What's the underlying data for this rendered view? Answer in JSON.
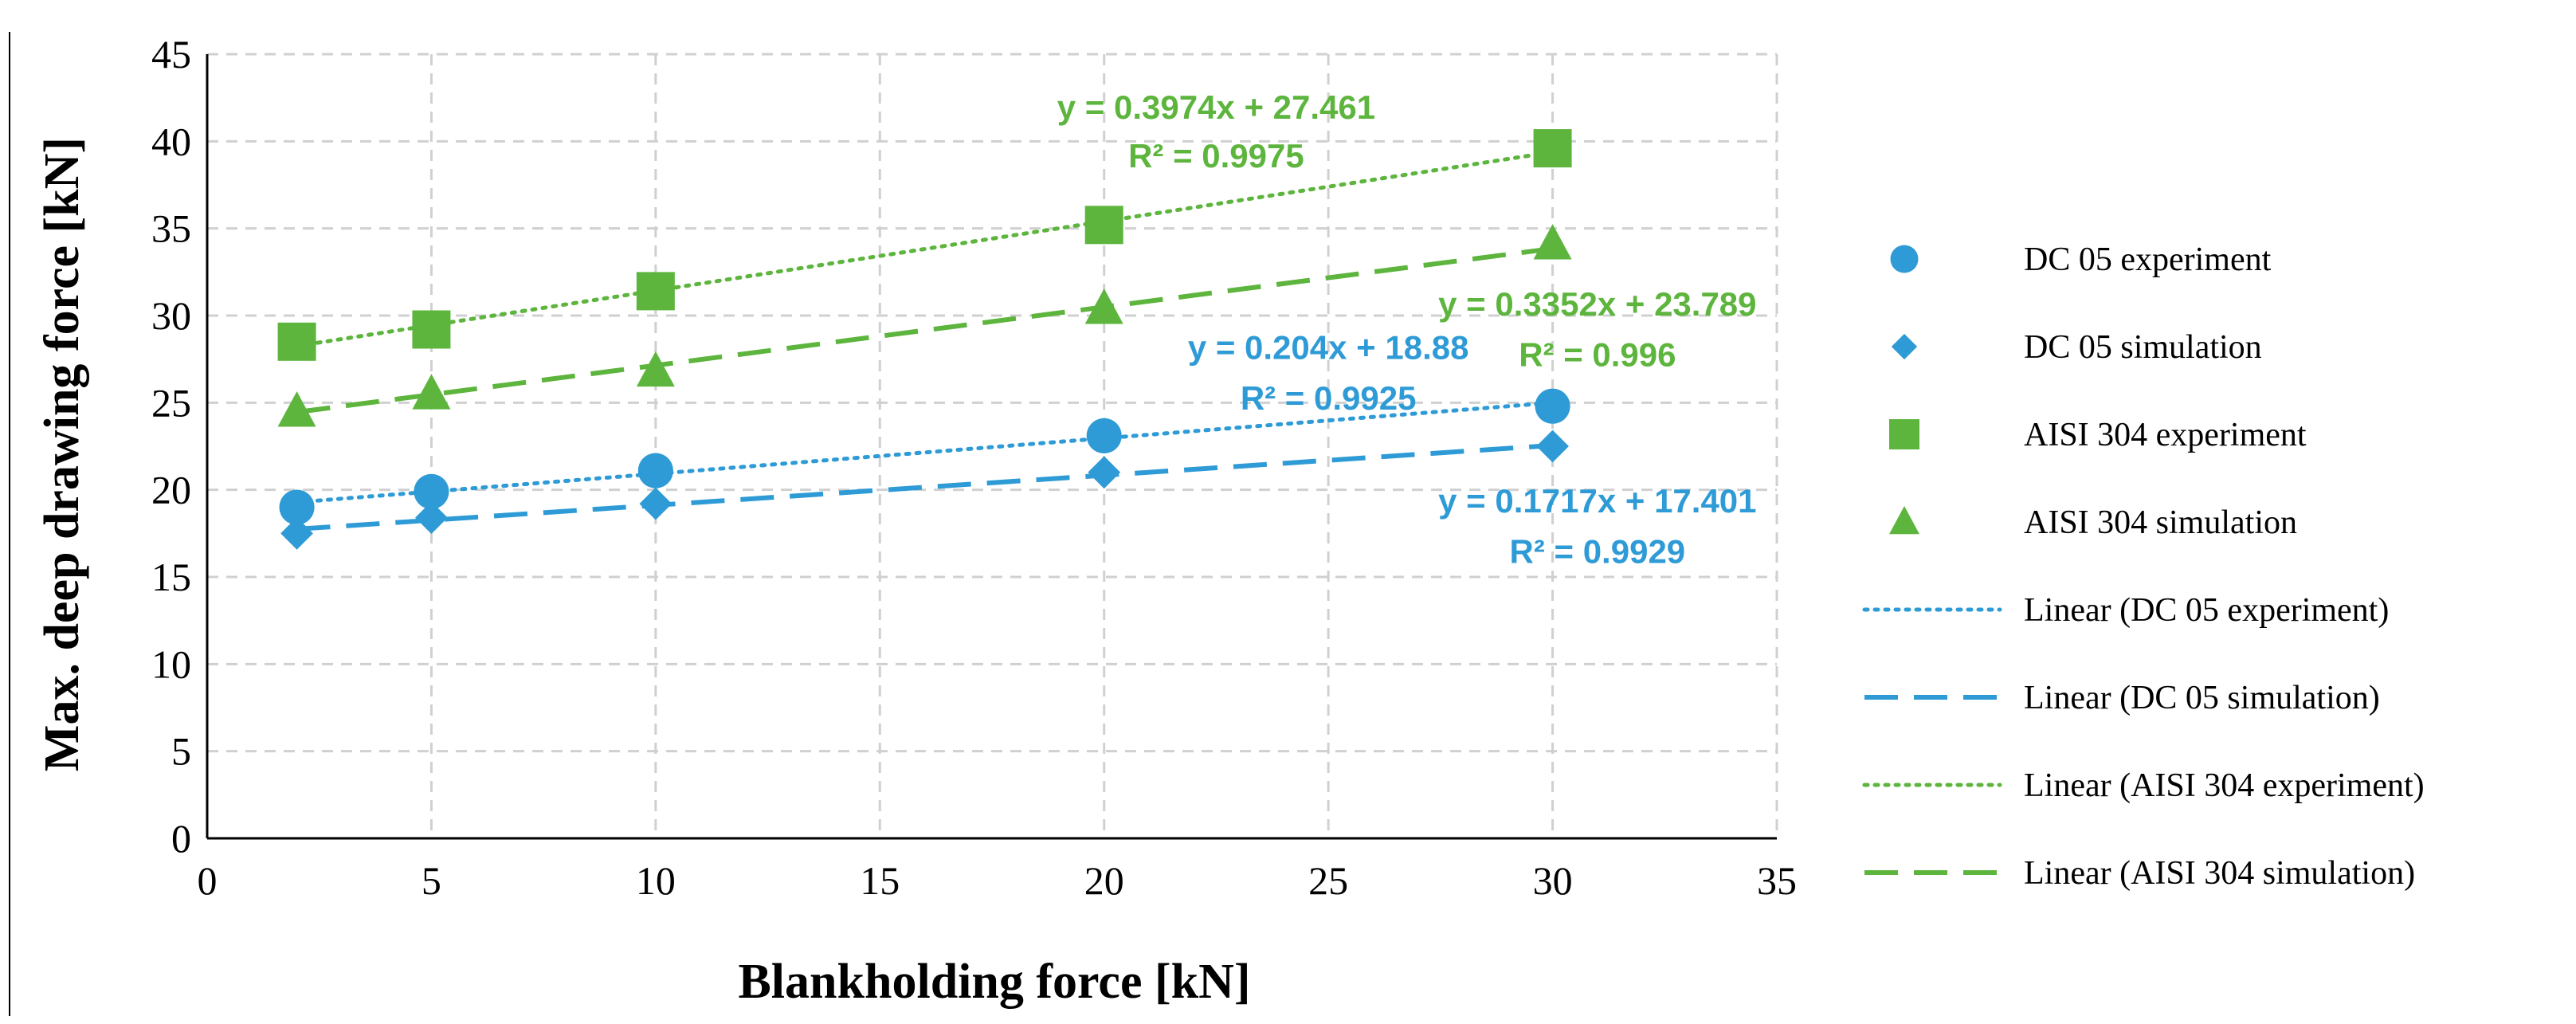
{
  "chart_data": {
    "type": "scatter",
    "xlabel": "Blankholding force  [kN]",
    "ylabel": "Max. deep drawing force  [kN]",
    "xlim": [
      0,
      35
    ],
    "ylim": [
      0,
      45
    ],
    "x_ticks": [
      "0",
      "5",
      "10",
      "15",
      "20",
      "25",
      "30",
      "35"
    ],
    "y_ticks": [
      "0",
      "5",
      "10",
      "15",
      "20",
      "25",
      "30",
      "35",
      "40",
      "45"
    ],
    "grid": true,
    "legend_position": "right",
    "x": [
      2,
      5,
      10,
      20,
      30
    ],
    "series": [
      {
        "name": "DC 05 experiment",
        "marker": "circle",
        "color": "#2E9BD6",
        "values": [
          19.0,
          19.9,
          21.1,
          23.1,
          24.8
        ]
      },
      {
        "name": "DC 05 simulation",
        "marker": "diamond",
        "color": "#2E9BD6",
        "values": [
          17.5,
          18.4,
          19.2,
          21.0,
          22.5
        ]
      },
      {
        "name": "AISI 304 experiment",
        "marker": "square",
        "color": "#5DB53E",
        "values": [
          28.5,
          29.2,
          31.4,
          35.2,
          39.6
        ]
      },
      {
        "name": "AISI 304 simulation",
        "marker": "triangle",
        "color": "#5DB53E",
        "values": [
          24.5,
          25.5,
          26.8,
          30.4,
          34.1
        ]
      }
    ],
    "trendlines": [
      {
        "name": "Linear (DC 05 experiment)",
        "style": "dotted",
        "color": "#2E9BD6",
        "slope": 0.204,
        "intercept": 18.88,
        "equation": "y = 0.204x + 18.88",
        "r2": "R² = 0.9925"
      },
      {
        "name": "Linear (DC 05 simulation)",
        "style": "dashed",
        "color": "#2E9BD6",
        "slope": 0.1717,
        "intercept": 17.401,
        "equation": "y = 0.1717x + 17.401",
        "r2": "R² = 0.9929"
      },
      {
        "name": "Linear (AISI 304 experiment)",
        "style": "dotted",
        "color": "#5DB53E",
        "slope": 0.3974,
        "intercept": 27.461,
        "equation": "y = 0.3974x + 27.461",
        "r2": "R² = 0.9975"
      },
      {
        "name": "Linear (AISI 304 simulation)",
        "style": "dashed",
        "color": "#5DB53E",
        "slope": 0.3352,
        "intercept": 23.789,
        "equation": "y = 0.3352x + 23.789",
        "r2": "R² = 0.996"
      }
    ]
  }
}
